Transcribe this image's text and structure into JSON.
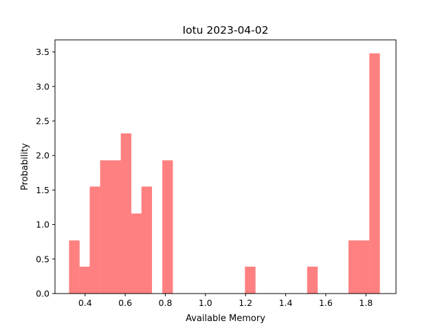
{
  "chart_data": {
    "type": "bar",
    "title": "Iotu 2023-04-02",
    "xlabel": "Available Memory",
    "ylabel": "Probability",
    "xlim": [
      0.25,
      1.95
    ],
    "ylim": [
      0,
      3.675
    ],
    "xticks": [
      "0.4",
      "0.6",
      "0.8",
      "1.0",
      "1.2",
      "1.4",
      "1.6",
      "1.8"
    ],
    "yticks": [
      "0.0",
      "0.5",
      "1.0",
      "1.5",
      "2.0",
      "2.5",
      "3.0",
      "3.5"
    ],
    "grid": false,
    "color": "#ff8080",
    "bin_width": 0.0516,
    "bins": [
      {
        "x": 0.32,
        "value": 0.77
      },
      {
        "x": 0.372,
        "value": 0.39
      },
      {
        "x": 0.423,
        "value": 1.55
      },
      {
        "x": 0.475,
        "value": 1.93
      },
      {
        "x": 0.527,
        "value": 1.93
      },
      {
        "x": 0.578,
        "value": 2.32
      },
      {
        "x": 0.63,
        "value": 1.16
      },
      {
        "x": 0.681,
        "value": 1.55
      },
      {
        "x": 0.733,
        "value": 0.0
      },
      {
        "x": 0.785,
        "value": 1.93
      },
      {
        "x": 0.836,
        "value": 0.0
      },
      {
        "x": 0.888,
        "value": 0.0
      },
      {
        "x": 0.939,
        "value": 0.0
      },
      {
        "x": 0.991,
        "value": 0.0
      },
      {
        "x": 1.043,
        "value": 0.0
      },
      {
        "x": 1.094,
        "value": 0.0
      },
      {
        "x": 1.146,
        "value": 0.0
      },
      {
        "x": 1.197,
        "value": 0.39
      },
      {
        "x": 1.249,
        "value": 0.0
      },
      {
        "x": 1.301,
        "value": 0.0
      },
      {
        "x": 1.352,
        "value": 0.0
      },
      {
        "x": 1.404,
        "value": 0.0
      },
      {
        "x": 1.455,
        "value": 0.0
      },
      {
        "x": 1.507,
        "value": 0.39
      },
      {
        "x": 1.559,
        "value": 0.0
      },
      {
        "x": 1.61,
        "value": 0.0
      },
      {
        "x": 1.662,
        "value": 0.0
      },
      {
        "x": 1.713,
        "value": 0.77
      },
      {
        "x": 1.765,
        "value": 0.77
      },
      {
        "x": 1.817,
        "value": 3.48
      }
    ]
  }
}
